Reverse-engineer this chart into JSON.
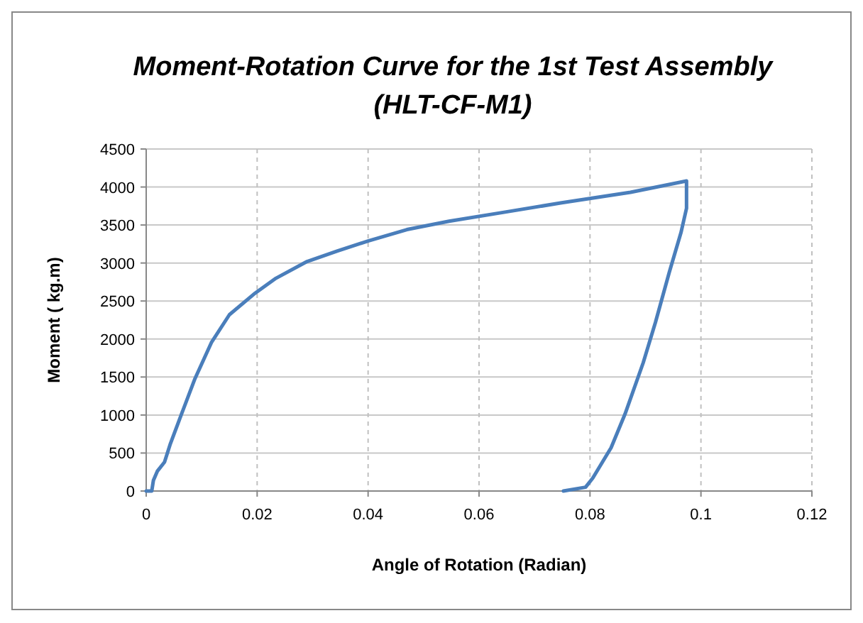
{
  "chart_data": {
    "type": "line",
    "title": "Moment-Rotation Curve for the 1st Test Assembly",
    "subtitle": "(HLT-CF-M1)",
    "xlabel": "Angle of Rotation (Radian)",
    "ylabel": "Moment ( kg.m)",
    "xlim": [
      0,
      0.12
    ],
    "xticks": [
      0,
      0.02,
      0.04,
      0.06,
      0.08,
      0.1,
      0.12
    ],
    "ylim": [
      0,
      4500
    ],
    "yticks": [
      0,
      500,
      1000,
      1500,
      2000,
      2500,
      3000,
      3500,
      4000,
      4500
    ],
    "grid": true,
    "marker": "none",
    "line_style": "solid",
    "series": [
      {
        "color": "#4a7ebb",
        "x": [
          0,
          0.001,
          0.0013,
          0.002,
          0.0033,
          0.0043,
          0.0063,
          0.0088,
          0.0118,
          0.015,
          0.0194,
          0.0234,
          0.029,
          0.0345,
          0.04,
          0.047,
          0.0546,
          0.0647,
          0.0747,
          0.0873,
          0.0974,
          0.0974,
          0.0964,
          0.0943,
          0.0918,
          0.0896,
          0.0863,
          0.0838,
          0.0805,
          0.0792,
          0.0752
        ],
        "values": [
          0,
          0,
          140,
          260,
          380,
          610,
          1000,
          1480,
          1960,
          2320,
          2590,
          2800,
          3020,
          3160,
          3290,
          3440,
          3550,
          3670,
          3790,
          3930,
          4080,
          3720,
          3400,
          2880,
          2220,
          1690,
          1010,
          570,
          170,
          50,
          0
        ]
      }
    ]
  }
}
